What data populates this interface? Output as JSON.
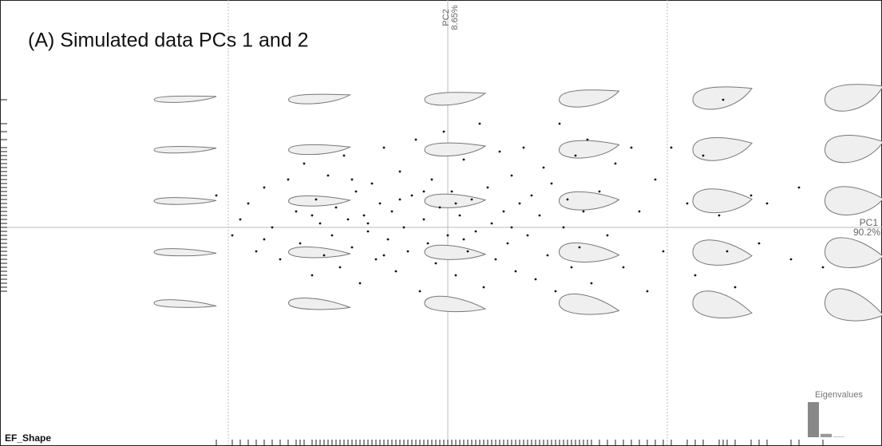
{
  "chart_data": {
    "type": "scatter",
    "title": "(A) Simulated data PCs 1 and 2",
    "dataset_label": "EF_Shape",
    "x_axis": {
      "name": "PC1",
      "variance": 90.2,
      "variance_label": "90.2%"
    },
    "y_axis": {
      "name": "PC2",
      "variance": 8.65,
      "variance_label": "8.65%"
    },
    "eigenvalues_title": "Eigenvalues",
    "other_eigenvalues": [
      1.15
    ],
    "color": "#111111",
    "xlim": [
      -5.61,
      5.44
    ],
    "ylim": [
      -2.74,
      2.85
    ],
    "x": [
      -2.9,
      -2.7,
      -2.6,
      -2.5,
      -2.4,
      -2.3,
      -2.2,
      -2.1,
      -2.0,
      -1.9,
      -1.85,
      -1.8,
      -1.7,
      -1.65,
      -1.6,
      -1.55,
      -1.5,
      -1.45,
      -1.4,
      -1.35,
      -1.3,
      -1.25,
      -1.2,
      -1.15,
      -1.1,
      -1.05,
      -1.0,
      -0.95,
      -0.9,
      -0.85,
      -0.8,
      -0.75,
      -0.7,
      -0.65,
      -0.6,
      -0.55,
      -0.5,
      -0.45,
      -0.4,
      -0.35,
      -0.3,
      -0.25,
      -0.2,
      -0.15,
      -0.1,
      -0.05,
      0.0,
      0.05,
      0.1,
      0.15,
      0.2,
      0.25,
      0.3,
      0.35,
      0.4,
      0.45,
      0.5,
      0.55,
      0.6,
      0.65,
      0.7,
      0.75,
      0.8,
      0.85,
      0.9,
      0.95,
      1.0,
      1.05,
      1.1,
      1.15,
      1.2,
      1.25,
      1.3,
      1.35,
      1.4,
      1.45,
      1.5,
      1.55,
      1.6,
      1.65,
      1.7,
      1.75,
      1.8,
      1.9,
      2.0,
      2.1,
      2.2,
      2.3,
      2.4,
      2.5,
      2.6,
      2.7,
      2.8,
      3.0,
      3.1,
      3.2,
      3.4,
      3.5,
      3.45,
      3.6,
      3.8,
      3.9,
      4.0,
      4.4,
      4.7,
      4.3,
      -1.0,
      -0.8,
      -0.3,
      0.2,
      0.1,
      -1.7,
      -2.3,
      -0.6,
      0.8,
      -1.2
    ],
    "y": [
      0.4,
      -0.1,
      0.1,
      0.3,
      -0.3,
      0.5,
      0.0,
      -0.4,
      0.6,
      0.2,
      -0.2,
      0.8,
      -0.6,
      0.35,
      0.05,
      -0.35,
      0.65,
      -0.1,
      0.25,
      -0.5,
      0.9,
      0.1,
      -0.25,
      0.45,
      -0.7,
      0.15,
      -0.05,
      0.55,
      -0.4,
      0.3,
      1.0,
      -0.15,
      0.2,
      -0.55,
      0.7,
      0.0,
      -0.3,
      0.4,
      1.1,
      -0.8,
      0.1,
      -0.2,
      0.6,
      -0.45,
      0.25,
      1.2,
      -0.1,
      0.45,
      -0.6,
      0.15,
      0.85,
      -0.3,
      0.35,
      -0.05,
      1.3,
      -0.75,
      0.5,
      0.05,
      -0.4,
      0.95,
      0.2,
      -0.2,
      0.65,
      -0.55,
      0.3,
      1.0,
      -0.1,
      0.4,
      -0.65,
      0.15,
      0.75,
      -0.35,
      0.55,
      -0.8,
      1.3,
      0.0,
      0.35,
      -0.5,
      0.9,
      -0.25,
      0.2,
      1.1,
      -0.7,
      0.45,
      -0.1,
      0.8,
      -0.5,
      1.0,
      0.2,
      -0.8,
      0.6,
      -0.3,
      1.0,
      0.3,
      -0.6,
      0.9,
      0.15,
      -0.3,
      1.6,
      -0.75,
      0.4,
      -0.2,
      0.3,
      0.5,
      -0.5,
      -0.4,
      0.05,
      -0.35,
      0.45,
      -0.15,
      0.3,
      0.15,
      -0.15,
      0.35,
      0.0,
      0.6
    ]
  }
}
